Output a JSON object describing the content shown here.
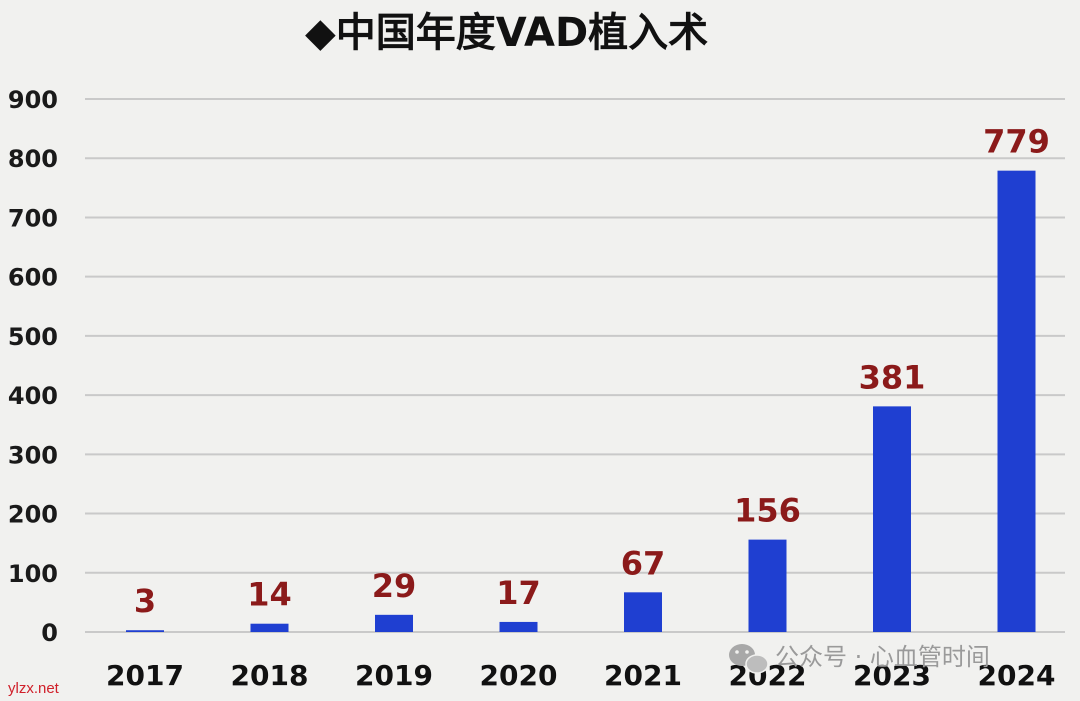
{
  "chart_data": {
    "type": "bar",
    "title": "◆中国年度VAD植入术",
    "categories": [
      "2017",
      "2018",
      "2019",
      "2020",
      "2021",
      "2022",
      "2023",
      "2024"
    ],
    "values": [
      3,
      14,
      29,
      17,
      67,
      156,
      381,
      779
    ],
    "ylim": [
      0,
      900
    ],
    "yticks": [
      0,
      100,
      200,
      300,
      400,
      500,
      600,
      700,
      800,
      900
    ],
    "grid": true,
    "bar_color": "#1f3fd1",
    "label_color": "#8b1a1a"
  },
  "watermark": {
    "icon": "wechat-icon",
    "text": "公众号 · 心血管时间"
  },
  "site_label": "ylzx.net"
}
